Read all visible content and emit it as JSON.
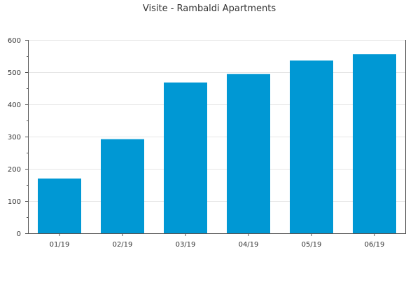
{
  "chart_data": {
    "type": "bar",
    "title": "Visite - Rambaldi Apartments",
    "categories": [
      "01/19",
      "02/19",
      "03/19",
      "04/19",
      "05/19",
      "06/19"
    ],
    "values": [
      170,
      292,
      468,
      494,
      536,
      556
    ],
    "ylim": [
      0,
      600
    ],
    "yticks": [
      0,
      100,
      200,
      300,
      400,
      500,
      600
    ],
    "grid": true,
    "bar_color": "#0098d4"
  }
}
